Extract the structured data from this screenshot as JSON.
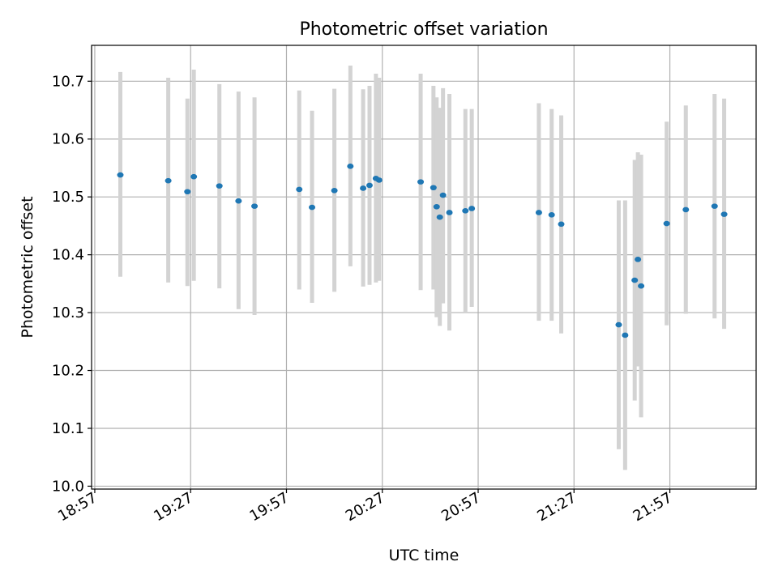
{
  "chart_data": {
    "type": "scatter",
    "title": "Photometric offset variation",
    "xlabel": "UTC time",
    "ylabel": "Photometric offset",
    "xlim": [
      "18:56",
      "22:24"
    ],
    "ylim": [
      9.995,
      10.762
    ],
    "grid": true,
    "x_tick_labels": [
      "18:57",
      "19:27",
      "19:57",
      "20:27",
      "20:57",
      "21:27",
      "21:57"
    ],
    "y_tick_labels": [
      "10.0",
      "10.1",
      "10.2",
      "10.3",
      "10.4",
      "10.5",
      "10.6",
      "10.7"
    ],
    "colors": {
      "point": "#1f77b4",
      "errorbar": "#d3d3d3",
      "grid": "#b0b0b0"
    },
    "points": [
      {
        "x": "19:05",
        "y": 10.538,
        "yerr_low": 10.362,
        "yerr_high": 10.716
      },
      {
        "x": "19:20",
        "y": 10.528,
        "yerr_low": 10.352,
        "yerr_high": 10.706
      },
      {
        "x": "19:26",
        "y": 10.509,
        "yerr_low": 10.346,
        "yerr_high": 10.67
      },
      {
        "x": "19:28",
        "y": 10.535,
        "yerr_low": 10.355,
        "yerr_high": 10.72
      },
      {
        "x": "19:36",
        "y": 10.519,
        "yerr_low": 10.342,
        "yerr_high": 10.695
      },
      {
        "x": "19:42",
        "y": 10.493,
        "yerr_low": 10.306,
        "yerr_high": 10.682
      },
      {
        "x": "19:47",
        "y": 10.484,
        "yerr_low": 10.296,
        "yerr_high": 10.672
      },
      {
        "x": "20:01",
        "y": 10.513,
        "yerr_low": 10.34,
        "yerr_high": 10.684
      },
      {
        "x": "20:05",
        "y": 10.482,
        "yerr_low": 10.317,
        "yerr_high": 10.649
      },
      {
        "x": "20:12",
        "y": 10.511,
        "yerr_low": 10.336,
        "yerr_high": 10.687
      },
      {
        "x": "20:17",
        "y": 10.553,
        "yerr_low": 10.38,
        "yerr_high": 10.727
      },
      {
        "x": "20:21",
        "y": 10.515,
        "yerr_low": 10.345,
        "yerr_high": 10.686
      },
      {
        "x": "20:23",
        "y": 10.52,
        "yerr_low": 10.348,
        "yerr_high": 10.692
      },
      {
        "x": "20:25",
        "y": 10.532,
        "yerr_low": 10.352,
        "yerr_high": 10.713
      },
      {
        "x": "20:26",
        "y": 10.529,
        "yerr_low": 10.355,
        "yerr_high": 10.706
      },
      {
        "x": "20:39",
        "y": 10.526,
        "yerr_low": 10.339,
        "yerr_high": 10.713
      },
      {
        "x": "20:43",
        "y": 10.516,
        "yerr_low": 10.34,
        "yerr_high": 10.692
      },
      {
        "x": "20:44",
        "y": 10.483,
        "yerr_low": 10.292,
        "yerr_high": 10.672
      },
      {
        "x": "20:45",
        "y": 10.465,
        "yerr_low": 10.277,
        "yerr_high": 10.654
      },
      {
        "x": "20:46",
        "y": 10.503,
        "yerr_low": 10.316,
        "yerr_high": 10.688
      },
      {
        "x": "20:48",
        "y": 10.473,
        "yerr_low": 10.269,
        "yerr_high": 10.678
      },
      {
        "x": "20:53",
        "y": 10.476,
        "yerr_low": 10.3,
        "yerr_high": 10.652
      },
      {
        "x": "20:55",
        "y": 10.48,
        "yerr_low": 10.31,
        "yerr_high": 10.652
      },
      {
        "x": "21:16",
        "y": 10.473,
        "yerr_low": 10.286,
        "yerr_high": 10.662
      },
      {
        "x": "21:20",
        "y": 10.469,
        "yerr_low": 10.286,
        "yerr_high": 10.652
      },
      {
        "x": "21:23",
        "y": 10.453,
        "yerr_low": 10.264,
        "yerr_high": 10.641
      },
      {
        "x": "21:41",
        "y": 10.279,
        "yerr_low": 10.064,
        "yerr_high": 10.494
      },
      {
        "x": "21:43",
        "y": 10.261,
        "yerr_low": 10.028,
        "yerr_high": 10.494
      },
      {
        "x": "21:46",
        "y": 10.356,
        "yerr_low": 10.148,
        "yerr_high": 10.564
      },
      {
        "x": "21:47",
        "y": 10.392,
        "yerr_low": 10.207,
        "yerr_high": 10.577
      },
      {
        "x": "21:48",
        "y": 10.346,
        "yerr_low": 10.119,
        "yerr_high": 10.573
      },
      {
        "x": "21:56",
        "y": 10.454,
        "yerr_low": 10.278,
        "yerr_high": 10.63
      },
      {
        "x": "22:02",
        "y": 10.478,
        "yerr_low": 10.298,
        "yerr_high": 10.658
      },
      {
        "x": "22:11",
        "y": 10.484,
        "yerr_low": 10.29,
        "yerr_high": 10.678
      },
      {
        "x": "22:14",
        "y": 10.47,
        "yerr_low": 10.272,
        "yerr_high": 10.67
      }
    ]
  }
}
